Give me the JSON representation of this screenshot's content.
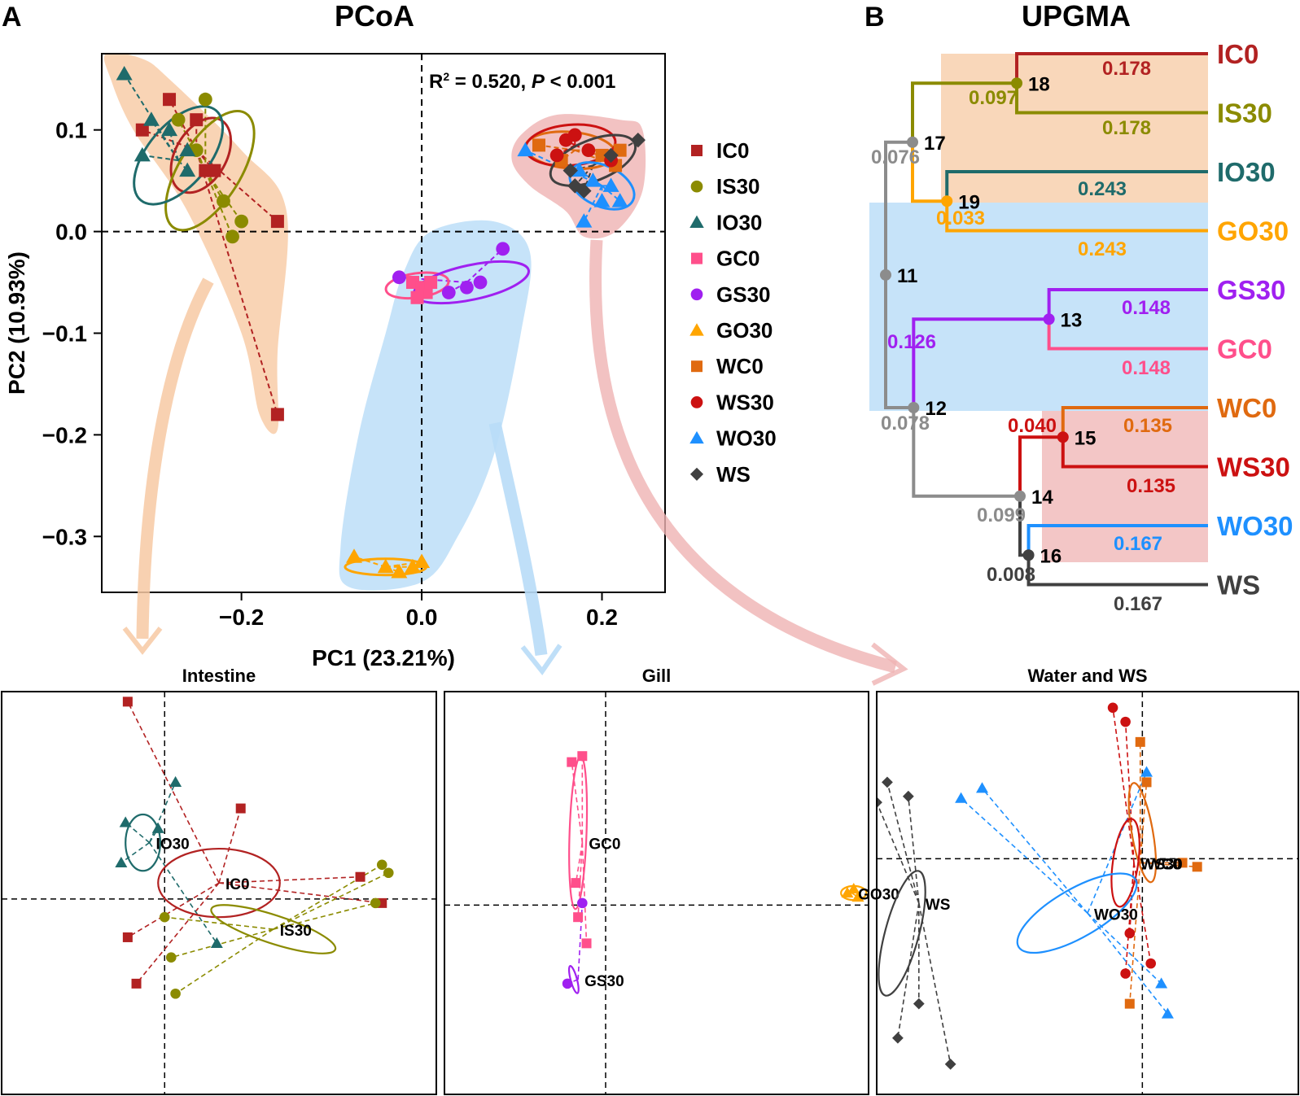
{
  "panels": {
    "a_letter": "A",
    "b_letter": "B"
  },
  "colors": {
    "IC0": "#b22222",
    "IS30": "#8b8b00",
    "IO30": "#1f6b6b",
    "GC0": "#ff4f8b",
    "GS30": "#a020f0",
    "GO30": "#ffa500",
    "WC0": "#e06a10",
    "WS30": "#cc1111",
    "WO30": "#1e90ff",
    "WS": "#404040",
    "intestine_hull": "#f7c9a3",
    "gill_hull": "#b8dcf7",
    "water_hull": "#efb3b3",
    "tree_gray": "#8c8c8c"
  },
  "chart_data": [
    {
      "type": "scatter",
      "id": "pcoa",
      "title": "PCoA",
      "xlabel": "PC1 (23.21%)",
      "ylabel": "PC2 (10.93%)",
      "xlim": [
        -0.355,
        0.27
      ],
      "ylim": [
        -0.355,
        0.175
      ],
      "xticks": [
        -0.2,
        0.0,
        0.2
      ],
      "xtick_labels": [
        "−0.2",
        "0.0",
        "0.2"
      ],
      "yticks": [
        0.1,
        0.0,
        -0.1,
        -0.2,
        -0.3
      ],
      "ytick_labels": [
        "0.1",
        "0.0",
        "−0.1",
        "−0.2",
        "−0.3"
      ],
      "annotation": {
        "r2_prefix": "R",
        "r2_sup": "2",
        "r2_value": " = 0.520, ",
        "p_letter": "P",
        "p_rest": " < 0.001"
      },
      "legend_position": "right",
      "legend": [
        {
          "name": "IC0",
          "shape": "square"
        },
        {
          "name": "IS30",
          "shape": "circle"
        },
        {
          "name": "IO30",
          "shape": "triangle"
        },
        {
          "name": "GC0",
          "shape": "square"
        },
        {
          "name": "GS30",
          "shape": "circle"
        },
        {
          "name": "GO30",
          "shape": "triangle"
        },
        {
          "name": "WC0",
          "shape": "square"
        },
        {
          "name": "WS30",
          "shape": "circle"
        },
        {
          "name": "WO30",
          "shape": "triangle"
        },
        {
          "name": "WS",
          "shape": "diamond"
        }
      ],
      "series": [
        {
          "name": "IC0",
          "shape": "square",
          "centroid": [
            -0.25,
            0.08
          ],
          "x": [
            -0.28,
            -0.25,
            -0.31,
            -0.24,
            -0.16,
            -0.16,
            -0.23
          ],
          "y": [
            0.13,
            0.11,
            0.1,
            0.06,
            0.01,
            -0.18,
            0.06
          ]
        },
        {
          "name": "IS30",
          "shape": "circle",
          "centroid": [
            -0.24,
            0.06
          ],
          "x": [
            -0.24,
            -0.27,
            -0.25,
            -0.22,
            -0.2,
            -0.21
          ],
          "y": [
            0.13,
            0.11,
            0.08,
            0.03,
            0.01,
            -0.005
          ]
        },
        {
          "name": "IO30",
          "shape": "triangle",
          "centroid": [
            -0.27,
            0.07
          ],
          "x": [
            -0.33,
            -0.3,
            -0.28,
            -0.26,
            -0.31,
            -0.26
          ],
          "y": [
            0.155,
            0.11,
            0.1,
            0.08,
            0.075,
            0.06
          ]
        },
        {
          "name": "GC0",
          "shape": "square",
          "centroid": [
            0.005,
            -0.055
          ],
          "x": [
            -0.01,
            0.0,
            0.005,
            -0.005,
            0.01
          ],
          "y": [
            -0.05,
            -0.055,
            -0.06,
            -0.065,
            -0.05
          ]
        },
        {
          "name": "GS30",
          "shape": "circle",
          "centroid": [
            0.05,
            -0.05
          ],
          "x": [
            -0.025,
            0.03,
            0.05,
            0.065,
            0.09
          ],
          "y": [
            -0.045,
            -0.06,
            -0.055,
            -0.05,
            -0.017
          ]
        },
        {
          "name": "GO30",
          "shape": "triangle",
          "centroid": [
            -0.04,
            -0.33
          ],
          "x": [
            -0.075,
            -0.04,
            -0.025,
            -0.01,
            0.0
          ],
          "y": [
            -0.32,
            -0.33,
            -0.335,
            -0.33,
            -0.325
          ]
        },
        {
          "name": "WC0",
          "shape": "square",
          "centroid": [
            0.17,
            0.08
          ],
          "x": [
            0.13,
            0.155,
            0.2,
            0.215,
            0.22
          ],
          "y": [
            0.085,
            0.07,
            0.075,
            0.065,
            0.08
          ]
        },
        {
          "name": "WS30",
          "shape": "circle",
          "centroid": [
            0.17,
            0.085
          ],
          "x": [
            0.16,
            0.17,
            0.185,
            0.15,
            0.21
          ],
          "y": [
            0.09,
            0.095,
            0.08,
            0.075,
            0.07
          ]
        },
        {
          "name": "WO30",
          "shape": "triangle",
          "centroid": [
            0.2,
            0.045
          ],
          "x": [
            0.115,
            0.175,
            0.19,
            0.21,
            0.22,
            0.18,
            0.2
          ],
          "y": [
            0.08,
            0.06,
            0.05,
            0.045,
            0.03,
            0.01,
            0.03
          ]
        },
        {
          "name": "WS",
          "shape": "diamond",
          "centroid": [
            0.19,
            0.065
          ],
          "x": [
            0.24,
            0.21,
            0.165,
            0.17,
            0.18
          ],
          "y": [
            0.09,
            0.075,
            0.06,
            0.045,
            0.04
          ]
        }
      ],
      "ellipses": [
        {
          "group": "IC0",
          "cx": -0.245,
          "cy": 0.075,
          "rx": 0.045,
          "ry": 0.025,
          "angle_deg": 60
        },
        {
          "group": "IS30",
          "cx": -0.235,
          "cy": 0.06,
          "rx": 0.075,
          "ry": 0.03,
          "angle_deg": 58
        },
        {
          "group": "IO30",
          "cx": -0.27,
          "cy": 0.075,
          "rx": 0.065,
          "ry": 0.03,
          "angle_deg": 50
        },
        {
          "group": "GC0",
          "cx": -0.005,
          "cy": -0.053,
          "rx": 0.035,
          "ry": 0.012,
          "angle_deg": 8
        },
        {
          "group": "GS30",
          "cx": 0.055,
          "cy": -0.05,
          "rx": 0.065,
          "ry": 0.017,
          "angle_deg": 12
        },
        {
          "group": "GO30",
          "cx": -0.04,
          "cy": -0.33,
          "rx": 0.045,
          "ry": 0.008,
          "angle_deg": 0
        },
        {
          "group": "WC0",
          "cx": 0.165,
          "cy": 0.08,
          "rx": 0.05,
          "ry": 0.018,
          "angle_deg": -5
        },
        {
          "group": "WS30",
          "cx": 0.165,
          "cy": 0.085,
          "rx": 0.05,
          "ry": 0.02,
          "angle_deg": 5
        },
        {
          "group": "WO30",
          "cx": 0.2,
          "cy": 0.045,
          "rx": 0.038,
          "ry": 0.02,
          "angle_deg": -25
        },
        {
          "group": "WS",
          "cx": 0.19,
          "cy": 0.07,
          "rx": 0.05,
          "ry": 0.02,
          "angle_deg": 22
        }
      ],
      "hulls": [
        {
          "name": "Intestine",
          "color": "intestine_hull",
          "points": [
            [
              -0.35,
              0.175
            ],
            [
              -0.31,
              0.17
            ],
            [
              -0.28,
              0.15
            ],
            [
              -0.2,
              0.08
            ],
            [
              -0.15,
              0.02
            ],
            [
              -0.16,
              -0.12
            ],
            [
              -0.16,
              -0.195
            ],
            [
              -0.18,
              -0.18
            ],
            [
              -0.2,
              -0.1
            ],
            [
              -0.26,
              0.02
            ],
            [
              -0.32,
              0.1
            ],
            [
              -0.345,
              0.15
            ]
          ]
        },
        {
          "name": "Gill",
          "color": "gill_hull",
          "points": [
            [
              -0.02,
              -0.04
            ],
            [
              0.01,
              0.0
            ],
            [
              0.08,
              0.01
            ],
            [
              0.12,
              -0.02
            ],
            [
              0.11,
              -0.1
            ],
            [
              0.08,
              -0.22
            ],
            [
              0.04,
              -0.3
            ],
            [
              0.0,
              -0.345
            ],
            [
              -0.08,
              -0.35
            ],
            [
              -0.09,
              -0.31
            ],
            [
              -0.07,
              -0.2
            ],
            [
              -0.04,
              -0.1
            ]
          ]
        },
        {
          "name": "Water",
          "color": "water_hull",
          "points": [
            [
              0.11,
              0.095
            ],
            [
              0.15,
              0.115
            ],
            [
              0.22,
              0.11
            ],
            [
              0.245,
              0.1
            ],
            [
              0.245,
              0.04
            ],
            [
              0.215,
              0.0
            ],
            [
              0.18,
              -0.005
            ],
            [
              0.16,
              0.02
            ],
            [
              0.12,
              0.045
            ],
            [
              0.1,
              0.07
            ]
          ]
        }
      ]
    },
    {
      "type": "dendrogram",
      "id": "upgma",
      "title": "UPGMA",
      "leaves": [
        "IC0",
        "IS30",
        "IO30",
        "GO30",
        "GS30",
        "GC0",
        "WC0",
        "WS30",
        "WO30",
        "WS"
      ],
      "nodes": [
        {
          "id": "11",
          "height": 0.3,
          "children": [
            "17",
            "12"
          ]
        },
        {
          "id": "17",
          "height": 0.275,
          "children": [
            "18",
            "19"
          ]
        },
        {
          "id": "18",
          "height": 0.178,
          "children": [
            "IC0",
            "IS30"
          ]
        },
        {
          "id": "19",
          "height": 0.243,
          "children": [
            "IO30",
            "GO30"
          ]
        },
        {
          "id": "12",
          "height": 0.274,
          "children": [
            "13",
            "14"
          ]
        },
        {
          "id": "13",
          "height": 0.148,
          "children": [
            "GS30",
            "GC0"
          ]
        },
        {
          "id": "14",
          "height": 0.175,
          "children": [
            "15",
            "16"
          ]
        },
        {
          "id": "15",
          "height": 0.135,
          "children": [
            "WC0",
            "WS30"
          ]
        },
        {
          "id": "16",
          "height": 0.167,
          "children": [
            "WO30",
            "WS"
          ]
        }
      ],
      "branch_labels": [
        {
          "text": "0.178",
          "color": "IC0"
        },
        {
          "text": "0.097",
          "color": "IS30"
        },
        {
          "text": "0.178",
          "color": "IS30"
        },
        {
          "text": "0.076",
          "color": "tree_gray"
        },
        {
          "text": "0.243",
          "color": "IO30"
        },
        {
          "text": "0.033",
          "color": "GO30"
        },
        {
          "text": "0.243",
          "color": "GO30"
        },
        {
          "text": "0.148",
          "color": "GS30"
        },
        {
          "text": "0.126",
          "color": "GS30"
        },
        {
          "text": "0.148",
          "color": "GC0"
        },
        {
          "text": "0.078",
          "color": "tree_gray"
        },
        {
          "text": "0.040",
          "color": "WS30"
        },
        {
          "text": "0.135",
          "color": "WC0"
        },
        {
          "text": "0.135",
          "color": "WS30"
        },
        {
          "text": "0.099",
          "color": "tree_gray"
        },
        {
          "text": "0.167",
          "color": "WO30"
        },
        {
          "text": "0.008",
          "color": "WS"
        },
        {
          "text": "0.167",
          "color": "WS"
        }
      ]
    },
    {
      "type": "scatter",
      "id": "intestine",
      "title": "Intestine",
      "groups": [
        {
          "name": "IC0",
          "label": "IC0",
          "shape": "square",
          "centroid": [
            0.0,
            0.05
          ],
          "x": [
            -0.42,
            0.1,
            0.65,
            0.75,
            -0.42,
            -0.38
          ],
          "y": [
            0.95,
            0.42,
            0.08,
            -0.05,
            -0.22,
            -0.45
          ]
        },
        {
          "name": "IS30",
          "label": "IS30",
          "shape": "circle",
          "centroid": [
            0.25,
            -0.18
          ],
          "x": [
            -0.25,
            -0.22,
            -0.2,
            0.75,
            0.78,
            0.72
          ],
          "y": [
            -0.12,
            -0.32,
            -0.5,
            0.14,
            0.1,
            -0.05
          ]
        },
        {
          "name": "IO30",
          "label": "IO30",
          "shape": "triangle",
          "centroid": [
            -0.32,
            0.25
          ],
          "x": [
            -0.2,
            -0.43,
            -0.28,
            -0.45,
            -0.01
          ],
          "y": [
            0.55,
            0.35,
            0.32,
            0.15,
            -0.25
          ]
        }
      ],
      "ellipses": [
        {
          "group": "IC0",
          "cx": 0.0,
          "cy": 0.05,
          "rx": 0.28,
          "ry": 0.17,
          "angle_deg": 0
        },
        {
          "group": "IS30",
          "cx": 0.25,
          "cy": -0.18,
          "rx": 0.3,
          "ry": 0.07,
          "angle_deg": -18
        },
        {
          "group": "IO30",
          "cx": -0.35,
          "cy": 0.25,
          "rx": 0.08,
          "ry": 0.14,
          "angle_deg": 0
        }
      ]
    },
    {
      "type": "scatter",
      "id": "gill",
      "title": "Gill",
      "groups": [
        {
          "name": "GC0",
          "label": "GC0",
          "shape": "square",
          "centroid": [
            -0.35,
            0.25
          ],
          "x": [
            -0.4,
            -0.35,
            -0.38,
            -0.37,
            -0.33
          ],
          "y": [
            0.65,
            0.68,
            0.05,
            -0.12,
            -0.25
          ]
        },
        {
          "name": "GS30",
          "label": "GS30",
          "shape": "circle",
          "centroid": [
            -0.37,
            -0.43
          ],
          "x": [
            -0.42,
            -0.35
          ],
          "y": [
            -0.45,
            -0.05
          ]
        },
        {
          "name": "GO30",
          "label": "GO30",
          "shape": "triangle",
          "centroid": [
            0.92,
            0.0
          ],
          "x": [
            0.9,
            0.93,
            0.95
          ],
          "y": [
            0.0,
            0.02,
            -0.02
          ]
        }
      ],
      "ellipses": [
        {
          "group": "GC0",
          "cx": -0.37,
          "cy": 0.3,
          "rx": 0.04,
          "ry": 0.38,
          "angle_deg": -2
        },
        {
          "group": "GS30",
          "cx": -0.39,
          "cy": -0.43,
          "rx": 0.015,
          "ry": 0.07,
          "angle_deg": 15
        },
        {
          "group": "GO30",
          "cx": 0.93,
          "cy": 0.0,
          "rx": 0.06,
          "ry": 0.035,
          "angle_deg": 0
        }
      ]
    },
    {
      "type": "scatter",
      "id": "water",
      "title": "Water and WS",
      "groups": [
        {
          "name": "WC0",
          "label": "WC0",
          "shape": "square",
          "centroid": [
            0.25,
            0.15
          ],
          "x": [
            0.25,
            0.28,
            0.52,
            0.45,
            0.2
          ],
          "y": [
            0.75,
            0.55,
            0.13,
            0.15,
            -0.55
          ]
        },
        {
          "name": "WS30",
          "label": "WS30",
          "shape": "circle",
          "centroid": [
            0.22,
            0.15
          ],
          "x": [
            0.12,
            0.18,
            0.2,
            0.3,
            0.18
          ],
          "y": [
            0.92,
            0.85,
            -0.2,
            -0.35,
            -0.4
          ]
        },
        {
          "name": "WO30",
          "label": "WO30",
          "shape": "triangle",
          "centroid": [
            0.0,
            -0.1
          ],
          "x": [
            -0.6,
            -0.5,
            0.35,
            0.38,
            0.28
          ],
          "y": [
            0.47,
            0.52,
            -0.45,
            -0.6,
            0.6
          ]
        },
        {
          "name": "WS",
          "label": "WS",
          "shape": "diamond",
          "centroid": [
            -0.8,
            -0.05
          ],
          "x": [
            -0.95,
            -1.0,
            -0.85,
            -0.8,
            -0.9,
            -0.65
          ],
          "y": [
            0.55,
            0.45,
            0.48,
            -0.55,
            -0.72,
            -0.85
          ]
        }
      ],
      "ellipses": [
        {
          "group": "WC0",
          "cx": 0.26,
          "cy": 0.3,
          "rx": 0.05,
          "ry": 0.25,
          "angle_deg": 10
        },
        {
          "group": "WS30",
          "cx": 0.18,
          "cy": 0.15,
          "rx": 0.06,
          "ry": 0.22,
          "angle_deg": -8
        },
        {
          "group": "WO30",
          "cx": -0.05,
          "cy": -0.1,
          "rx": 0.32,
          "ry": 0.12,
          "angle_deg": 30
        },
        {
          "group": "WS",
          "cx": -0.88,
          "cy": -0.2,
          "rx": 0.08,
          "ry": 0.32,
          "angle_deg": -15
        }
      ]
    }
  ]
}
